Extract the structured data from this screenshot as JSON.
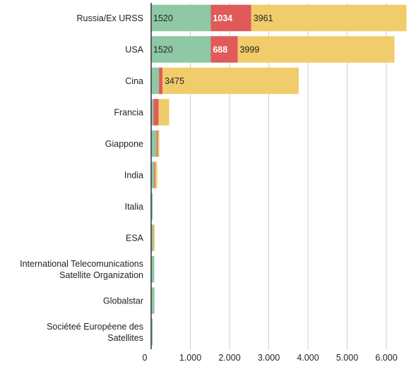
{
  "chart_data": {
    "type": "bar",
    "orientation": "horizontal",
    "stacked": true,
    "categories": [
      [
        "Russia/Ex URSS"
      ],
      [
        "USA"
      ],
      [
        "Cina"
      ],
      [
        "Francia"
      ],
      [
        "Giappone"
      ],
      [
        "India"
      ],
      [
        "Italia"
      ],
      [
        "ESA"
      ],
      [
        "International Telecomunications",
        "Satellite Organization"
      ],
      [
        "Globalstar"
      ],
      [
        "Sociéteé Européene des",
        "Satellites"
      ]
    ],
    "series": [
      {
        "color": "#8ec8a4",
        "values": [
          1520,
          1520,
          200,
          60,
          140,
          80,
          40,
          50,
          80,
          85,
          40
        ]
      },
      {
        "color": "#e05a5a",
        "values": [
          1034,
          688,
          90,
          130,
          30,
          25,
          0,
          10,
          0,
          0,
          0
        ]
      },
      {
        "color": "#f0cc6a",
        "values": [
          3961,
          3999,
          3475,
          270,
          40,
          50,
          0,
          30,
          0,
          0,
          0
        ]
      }
    ],
    "data_labels": [
      [
        "1520",
        "1034",
        "3961"
      ],
      [
        "1520",
        "688",
        "3999"
      ],
      [
        "",
        "",
        "3475"
      ],
      [
        "",
        "",
        ""
      ],
      [
        "",
        "",
        ""
      ],
      [
        "",
        "",
        ""
      ],
      [
        "",
        "",
        ""
      ],
      [
        "",
        "",
        ""
      ],
      [
        "",
        "",
        ""
      ],
      [
        "",
        "",
        ""
      ],
      [
        "",
        "",
        ""
      ]
    ],
    "bold_labels": [
      "1034",
      "688"
    ],
    "x_ticks": [
      0,
      1000,
      2000,
      3000,
      4000,
      5000,
      6000
    ],
    "x_tick_labels": [
      "0",
      "1.000",
      "2.000",
      "3.000",
      "4.000",
      "5.000",
      "6.000"
    ],
    "xlim": [
      0,
      6517
    ],
    "grid": true,
    "title": "",
    "xlabel": "",
    "ylabel": ""
  }
}
